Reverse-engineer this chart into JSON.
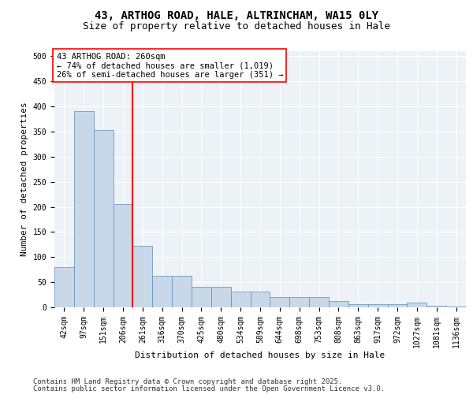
{
  "title_line1": "43, ARTHOG ROAD, HALE, ALTRINCHAM, WA15 0LY",
  "title_line2": "Size of property relative to detached houses in Hale",
  "xlabel": "Distribution of detached houses by size in Hale",
  "ylabel": "Number of detached properties",
  "categories": [
    "42sqm",
    "97sqm",
    "151sqm",
    "206sqm",
    "261sqm",
    "316sqm",
    "370sqm",
    "425sqm",
    "480sqm",
    "534sqm",
    "589sqm",
    "644sqm",
    "698sqm",
    "753sqm",
    "808sqm",
    "863sqm",
    "917sqm",
    "972sqm",
    "1027sqm",
    "1081sqm",
    "1136sqm"
  ],
  "values": [
    80,
    390,
    353,
    205,
    122,
    63,
    63,
    41,
    41,
    32,
    32,
    20,
    21,
    21,
    12,
    7,
    7,
    7,
    10,
    3,
    1
  ],
  "bar_color": "#c8d8e8",
  "bar_edge_color": "#5b8db8",
  "red_line_x": 3.5,
  "annotation_box_text": "43 ARTHOG ROAD: 260sqm\n← 74% of detached houses are smaller (1,019)\n26% of semi-detached houses are larger (351) →",
  "ylim": [
    0,
    510
  ],
  "yticks": [
    0,
    50,
    100,
    150,
    200,
    250,
    300,
    350,
    400,
    450,
    500
  ],
  "background_color": "#edf2f7",
  "grid_color": "#ffffff",
  "footer_line1": "Contains HM Land Registry data © Crown copyright and database right 2025.",
  "footer_line2": "Contains public sector information licensed under the Open Government Licence v3.0.",
  "title_fontsize": 10,
  "subtitle_fontsize": 9,
  "label_fontsize": 8,
  "tick_fontsize": 7,
  "annotation_fontsize": 7.5,
  "footer_fontsize": 6.5
}
